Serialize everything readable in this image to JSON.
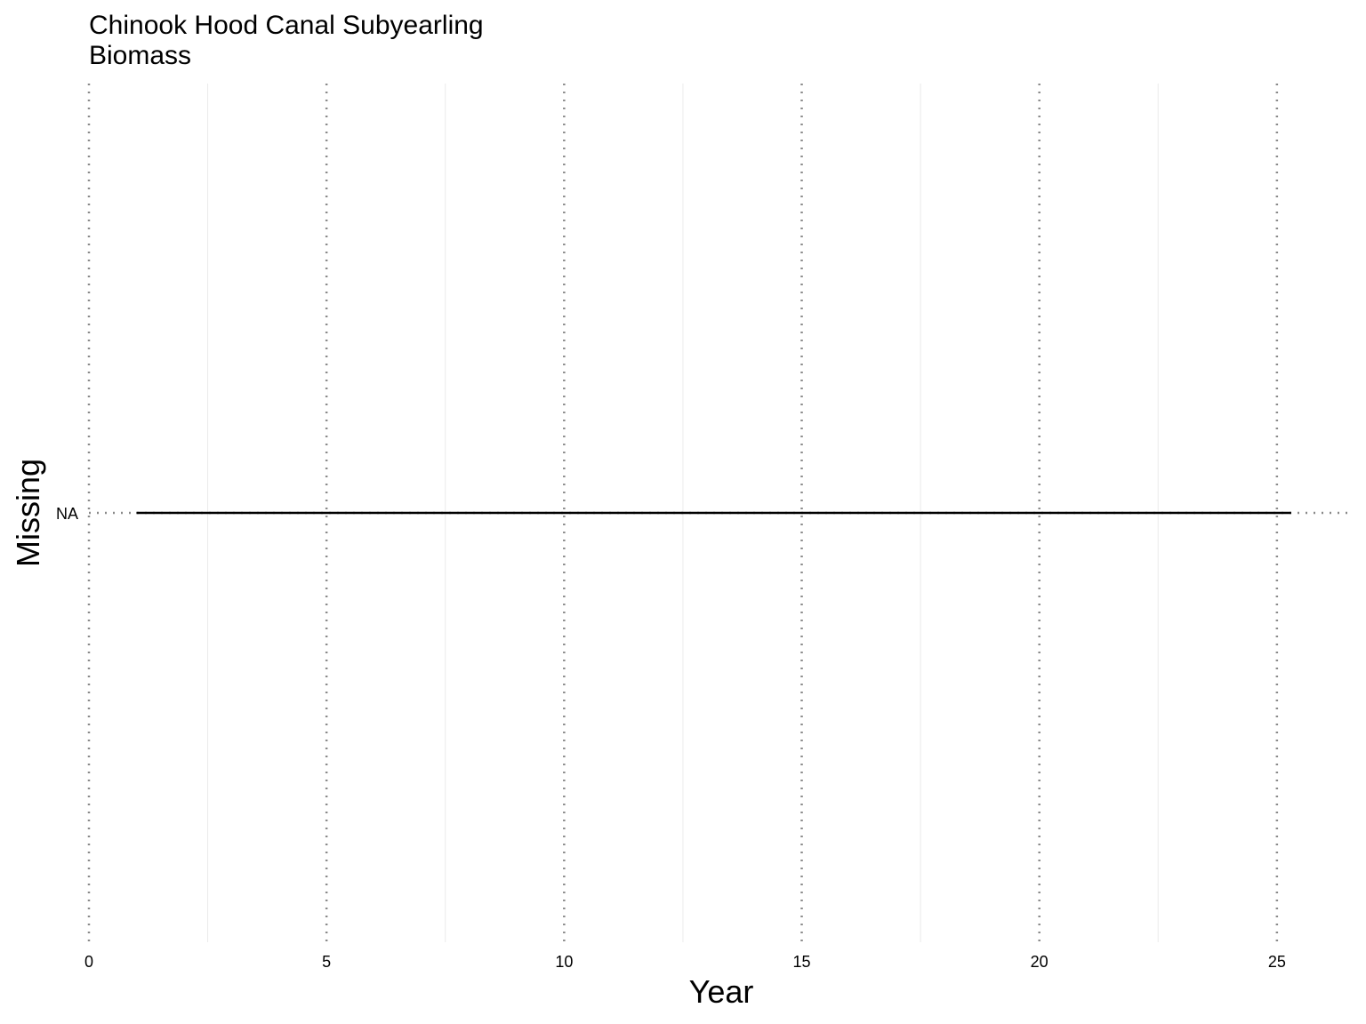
{
  "chart_data": {
    "type": "line",
    "title": [
      "Chinook Hood Canal Subyearling",
      "Biomass"
    ],
    "xlabel": "Year",
    "ylabel": "Missing",
    "xlim": [
      0,
      26.5
    ],
    "x_ticks": [
      0,
      5,
      10,
      15,
      20,
      25
    ],
    "x_tick_labels": [
      "0",
      "5",
      "10",
      "15",
      "20",
      "25"
    ],
    "y_ticks": [
      "NA"
    ],
    "grid": "on",
    "legend": "none",
    "series": [
      {
        "x": [
          1,
          25.3
        ],
        "y": [
          "NA",
          "NA"
        ],
        "color": "#000000"
      }
    ],
    "colors": {
      "major_grid": "#8a8a8a",
      "minor_grid": "#ebebeb",
      "line": "#000000"
    }
  }
}
